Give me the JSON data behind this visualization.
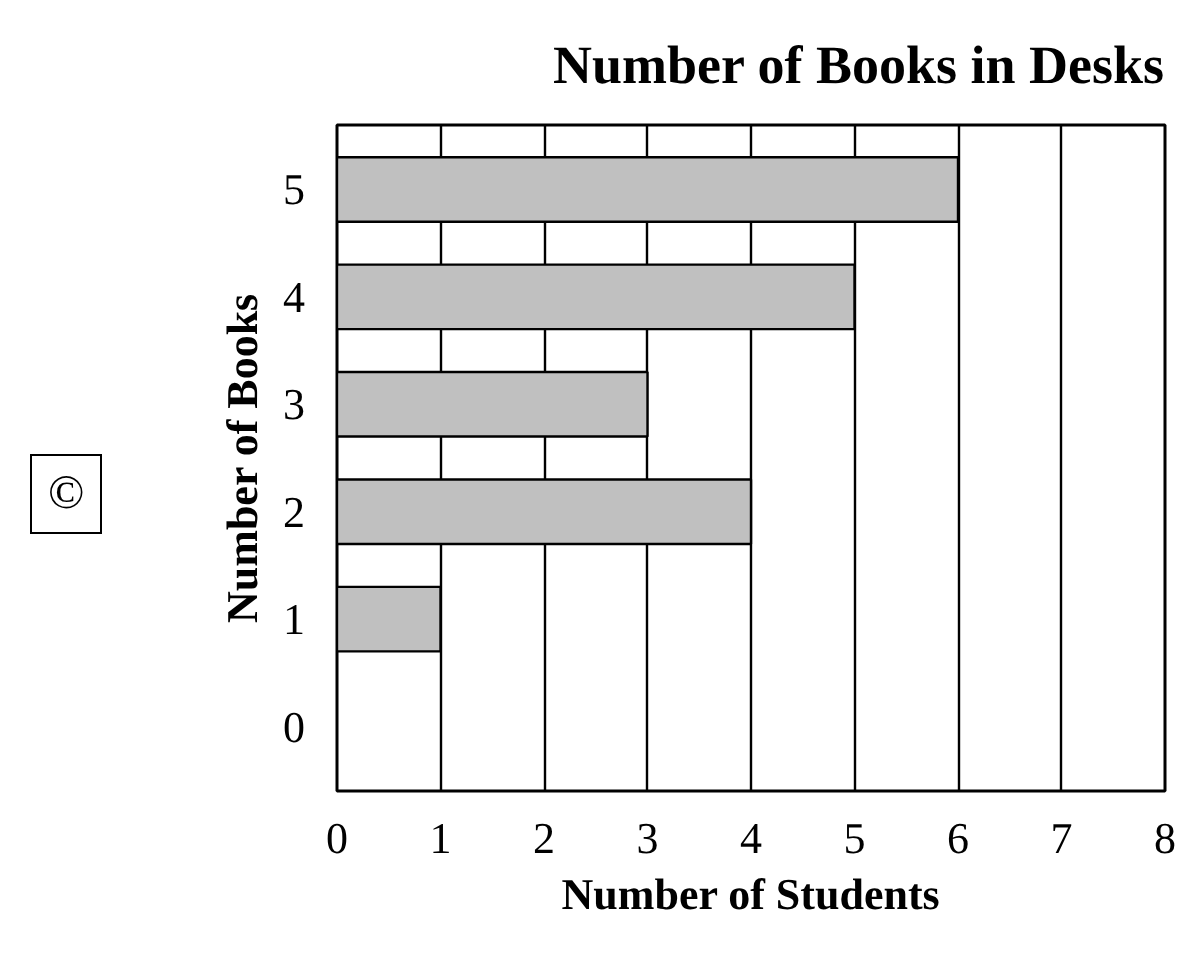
{
  "chart_data": {
    "type": "bar",
    "orientation": "horizontal",
    "title": "Number of Books in Desks",
    "xlabel": "Number of Students",
    "ylabel": "Number of Books",
    "categories": [
      "5",
      "4",
      "3",
      "2",
      "1",
      "0"
    ],
    "values": [
      6,
      5,
      3,
      4,
      1,
      0
    ],
    "color": "#c0c0c0",
    "xlim": [
      0,
      8
    ],
    "xticks": [
      0,
      1,
      2,
      3,
      4,
      5,
      6,
      7,
      8
    ],
    "grid": "x",
    "annotations": [
      "©"
    ]
  }
}
